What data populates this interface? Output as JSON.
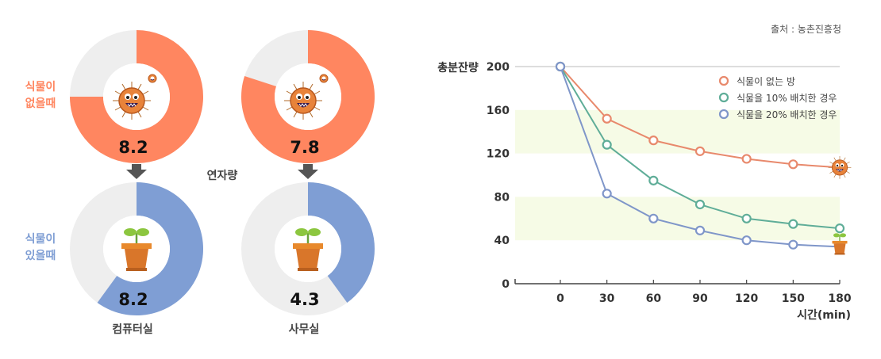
{
  "source": "출처 : 농촌진흥청",
  "chart_data": [
    {
      "type": "pie",
      "row_labels": [
        "식물이\n없을때",
        "식물이\n있을때"
      ],
      "center_label": "연자량",
      "columns": [
        {
          "name": "컴퓨터실",
          "without_plant": {
            "value": 8.2,
            "label": "8.2",
            "fraction": 0.75
          },
          "with_plant": {
            "value": 8.2,
            "label": "8.2",
            "fraction": 0.6
          }
        },
        {
          "name": "사무실",
          "without_plant": {
            "value": 7.8,
            "label": "7.8",
            "fraction": 0.8
          },
          "with_plant": {
            "value": 4.3,
            "label": "4.3",
            "fraction": 0.4
          }
        }
      ],
      "colors": {
        "without": "#ff8660",
        "with": "#7f9ed4",
        "rest": "#eeeeee"
      }
    },
    {
      "type": "line",
      "ylabel": "총분잔량",
      "xlabel": "시간(min)",
      "x": [
        0,
        30,
        60,
        90,
        120,
        150,
        180
      ],
      "ylim": [
        0,
        200
      ],
      "yticks": [
        0,
        40,
        80,
        120,
        160,
        200
      ],
      "highlight_bands": [
        [
          40,
          80
        ],
        [
          120,
          160
        ]
      ],
      "legend_position": "top-right",
      "series": [
        {
          "name": "식물이 없는 방",
          "color": "#e8896c",
          "values": [
            200,
            152,
            132,
            122,
            115,
            110,
            107
          ]
        },
        {
          "name": "식물을 10% 배치한 경우",
          "color": "#5fad98",
          "values": [
            200,
            128,
            95,
            73,
            60,
            55,
            51
          ]
        },
        {
          "name": "식물을 20% 배치한 경우",
          "color": "#7f96c9",
          "values": [
            200,
            83,
            60,
            49,
            40,
            36,
            34
          ]
        }
      ]
    }
  ]
}
